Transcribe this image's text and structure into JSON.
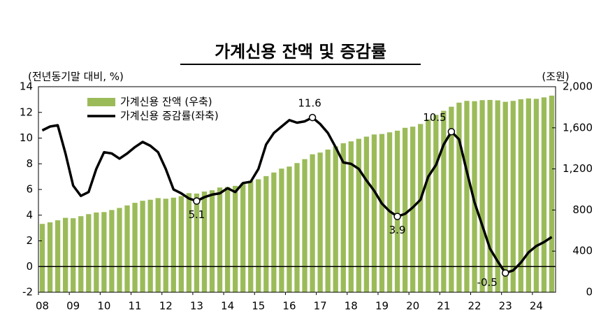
{
  "chart_data": {
    "type": "combo",
    "title": "가계신용 잔액 및 증감률",
    "y_label": "(전년동기말 대비, %)",
    "y2_label": "(조원)",
    "categories": [
      "08",
      null,
      null,
      null,
      "09",
      null,
      null,
      null,
      "10",
      null,
      null,
      null,
      "11",
      null,
      null,
      null,
      "12",
      null,
      null,
      null,
      "13",
      null,
      null,
      null,
      "14",
      null,
      null,
      null,
      "15",
      null,
      null,
      null,
      "16",
      null,
      null,
      null,
      "17",
      null,
      null,
      null,
      "18",
      null,
      null,
      null,
      "19",
      null,
      null,
      null,
      "20",
      null,
      null,
      null,
      "21",
      null,
      null,
      null,
      "22",
      null,
      null,
      null,
      "23",
      null,
      null,
      null,
      "24",
      null,
      null
    ],
    "series": [
      {
        "name": "가계신용 잔액 (우축)",
        "type": "bar",
        "axis": "y2",
        "color": "#9bbb59",
        "values": [
          665,
          680,
          700,
          724,
          720,
          740,
          760,
          776,
          780,
          800,
          820,
          845,
          870,
          890,
          900,
          916,
          910,
          920,
          935,
          964,
          960,
          980,
          992,
          1019,
          1024,
          1035,
          1060,
          1085,
          1099,
          1130,
          1165,
          1203,
          1223,
          1257,
          1295,
          1342,
          1359,
          1388,
          1419,
          1450,
          1468,
          1493,
          1514,
          1535,
          1540,
          1556,
          1572,
          1600,
          1611,
          1637,
          1682,
          1726,
          1765,
          1805,
          1845,
          1862,
          1859,
          1869,
          1871,
          1867,
          1853,
          1862,
          1878,
          1886,
          1882,
          1896,
          1913
        ]
      },
      {
        "name": "가계신용 증감률(좌축)",
        "type": "line",
        "axis": "y",
        "color": "#000000",
        "values": [
          10.6,
          10.9,
          11.0,
          8.8,
          6.3,
          5.5,
          5.8,
          7.6,
          8.9,
          8.8,
          8.4,
          8.8,
          9.3,
          9.7,
          9.4,
          8.9,
          7.6,
          6.0,
          5.7,
          5.3,
          5.1,
          5.4,
          5.6,
          5.7,
          6.1,
          5.8,
          6.5,
          6.6,
          7.6,
          9.5,
          10.4,
          10.9,
          11.4,
          11.2,
          11.3,
          11.6,
          11.1,
          10.4,
          9.3,
          8.1,
          8.0,
          7.6,
          6.7,
          5.9,
          4.9,
          4.3,
          3.9,
          4.1,
          4.6,
          5.2,
          7.0,
          7.9,
          9.5,
          10.5,
          9.9,
          7.4,
          5.0,
          3.2,
          1.4,
          0.4,
          -0.5,
          -0.3,
          0.3,
          1.1,
          1.6,
          1.9,
          2.3
        ],
        "value_labels": [
          null,
          null,
          null,
          null,
          null,
          null,
          null,
          null,
          null,
          null,
          null,
          null,
          null,
          null,
          null,
          null,
          null,
          null,
          null,
          null,
          "5.1",
          null,
          null,
          null,
          null,
          null,
          null,
          null,
          null,
          null,
          null,
          null,
          null,
          null,
          null,
          "11.6",
          null,
          null,
          null,
          null,
          null,
          null,
          null,
          null,
          null,
          null,
          "3.9",
          null,
          null,
          null,
          null,
          null,
          null,
          "10.5",
          null,
          null,
          null,
          null,
          null,
          null,
          "-0.5",
          null,
          null,
          null,
          null,
          null,
          null
        ]
      }
    ],
    "ylim": [
      -2,
      14
    ],
    "yticks": [
      -2,
      0,
      2,
      4,
      6,
      8,
      10,
      12,
      14
    ],
    "y2lim": [
      0,
      2000
    ],
    "y2ticks": [
      0,
      400,
      800,
      {
        "value": 1200,
        "label": "1,200"
      },
      {
        "value": 1600,
        "label": "1,600"
      },
      {
        "value": 2000,
        "label": "2,000"
      }
    ],
    "legend": "upper left"
  }
}
